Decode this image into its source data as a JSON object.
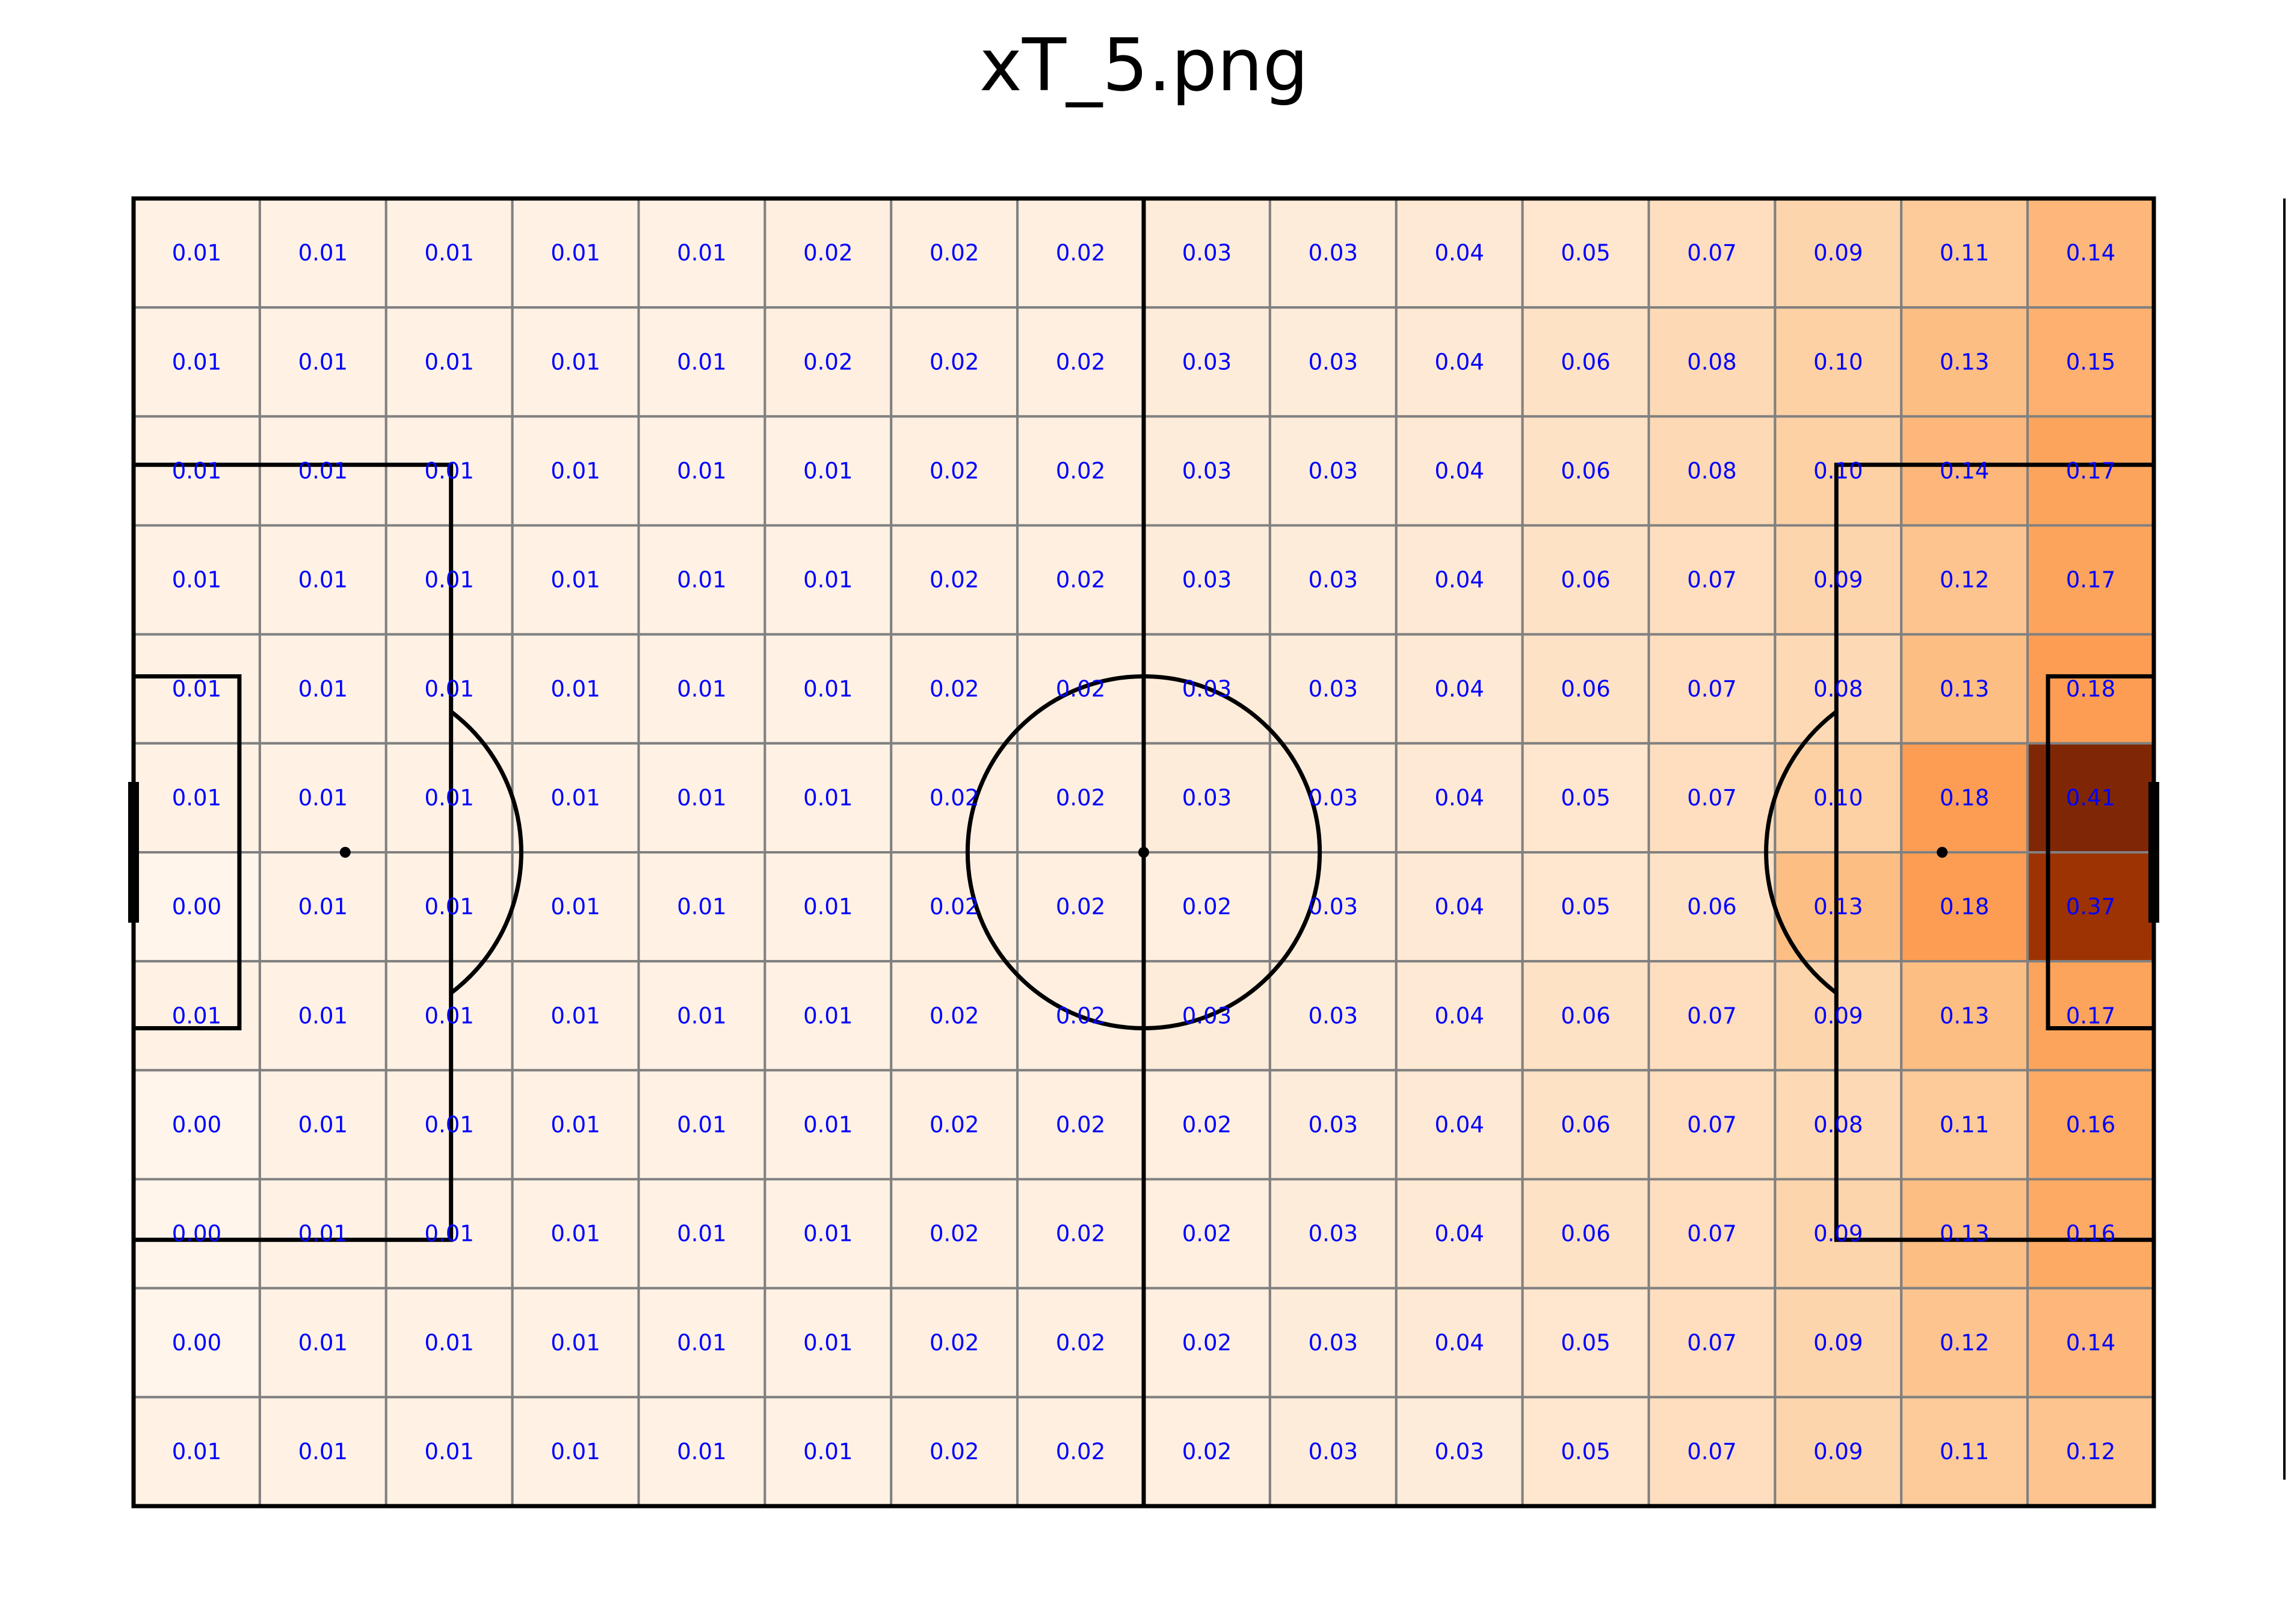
{
  "chart_data": {
    "type": "heatmap",
    "title": "xT_5.png",
    "grid_rows": 12,
    "grid_cols": 16,
    "values": [
      [
        0.01,
        0.01,
        0.01,
        0.01,
        0.01,
        0.02,
        0.02,
        0.02,
        0.03,
        0.03,
        0.04,
        0.05,
        0.07,
        0.09,
        0.11,
        0.14
      ],
      [
        0.01,
        0.01,
        0.01,
        0.01,
        0.01,
        0.02,
        0.02,
        0.02,
        0.03,
        0.03,
        0.04,
        0.06,
        0.08,
        0.1,
        0.13,
        0.15
      ],
      [
        0.01,
        0.01,
        0.01,
        0.01,
        0.01,
        0.01,
        0.02,
        0.02,
        0.03,
        0.03,
        0.04,
        0.06,
        0.08,
        0.1,
        0.14,
        0.17
      ],
      [
        0.01,
        0.01,
        0.01,
        0.01,
        0.01,
        0.01,
        0.02,
        0.02,
        0.03,
        0.03,
        0.04,
        0.06,
        0.07,
        0.09,
        0.12,
        0.17
      ],
      [
        0.01,
        0.01,
        0.01,
        0.01,
        0.01,
        0.01,
        0.02,
        0.02,
        0.03,
        0.03,
        0.04,
        0.06,
        0.07,
        0.08,
        0.13,
        0.18
      ],
      [
        0.01,
        0.01,
        0.01,
        0.01,
        0.01,
        0.01,
        0.02,
        0.02,
        0.03,
        0.03,
        0.04,
        0.05,
        0.07,
        0.1,
        0.18,
        0.41
      ],
      [
        0.0,
        0.01,
        0.01,
        0.01,
        0.01,
        0.01,
        0.02,
        0.02,
        0.02,
        0.03,
        0.04,
        0.05,
        0.06,
        0.13,
        0.18,
        0.37
      ],
      [
        0.01,
        0.01,
        0.01,
        0.01,
        0.01,
        0.01,
        0.02,
        0.02,
        0.03,
        0.03,
        0.04,
        0.06,
        0.07,
        0.09,
        0.13,
        0.17
      ],
      [
        0.0,
        0.01,
        0.01,
        0.01,
        0.01,
        0.01,
        0.02,
        0.02,
        0.02,
        0.03,
        0.04,
        0.06,
        0.07,
        0.08,
        0.11,
        0.16
      ],
      [
        0.0,
        0.01,
        0.01,
        0.01,
        0.01,
        0.01,
        0.02,
        0.02,
        0.02,
        0.03,
        0.04,
        0.06,
        0.07,
        0.09,
        0.13,
        0.16
      ],
      [
        0.0,
        0.01,
        0.01,
        0.01,
        0.01,
        0.01,
        0.02,
        0.02,
        0.02,
        0.03,
        0.04,
        0.05,
        0.07,
        0.09,
        0.12,
        0.14
      ],
      [
        0.01,
        0.01,
        0.01,
        0.01,
        0.01,
        0.01,
        0.02,
        0.02,
        0.02,
        0.03,
        0.03,
        0.05,
        0.07,
        0.09,
        0.11,
        0.12
      ]
    ],
    "value_range": [
      0.0,
      0.41
    ],
    "colormap": "Oranges",
    "label_color": "#0000ff",
    "grid_color": "#808080",
    "pitch_line_color": "#000000",
    "background": "pitch"
  }
}
